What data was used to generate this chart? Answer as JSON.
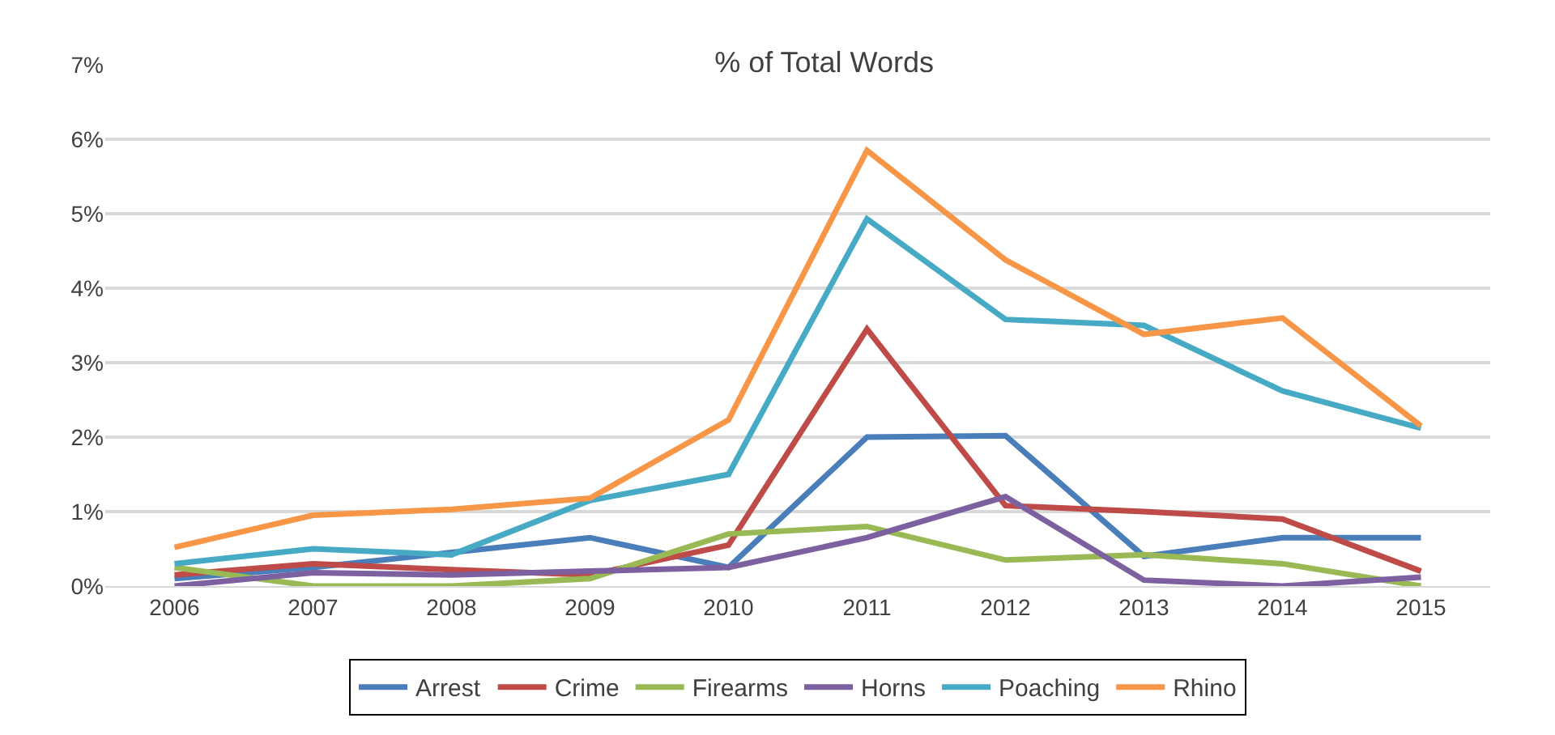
{
  "chart_data": {
    "type": "line",
    "title": "% of Total Words",
    "categories": [
      "2006",
      "2007",
      "2008",
      "2009",
      "2010",
      "2011",
      "2012",
      "2013",
      "2014",
      "2015"
    ],
    "series": [
      {
        "name": "Arrest",
        "color": "#4a7ebb",
        "values": [
          0.1,
          0.25,
          0.45,
          0.65,
          0.25,
          2.0,
          2.02,
          0.4,
          0.65,
          0.65
        ]
      },
      {
        "name": "Crime",
        "color": "#be4b48",
        "values": [
          0.15,
          0.3,
          0.22,
          0.15,
          0.55,
          3.45,
          1.08,
          1.0,
          0.9,
          0.2
        ]
      },
      {
        "name": "Firearms",
        "color": "#98b954",
        "values": [
          0.25,
          0.0,
          0.0,
          0.1,
          0.7,
          0.8,
          0.35,
          0.42,
          0.3,
          0.0
        ]
      },
      {
        "name": "Horns",
        "color": "#7d60a0",
        "values": [
          0.0,
          0.18,
          0.15,
          0.2,
          0.25,
          0.65,
          1.2,
          0.08,
          0.0,
          0.12
        ]
      },
      {
        "name": "Poaching",
        "color": "#46aac5",
        "values": [
          0.3,
          0.5,
          0.42,
          1.15,
          1.5,
          4.93,
          3.58,
          3.5,
          2.62,
          2.12
        ]
      },
      {
        "name": "Rhino",
        "color": "#f79646",
        "values": [
          0.52,
          0.95,
          1.03,
          1.18,
          2.23,
          5.85,
          4.38,
          3.38,
          3.6,
          2.15
        ]
      }
    ],
    "ylim": [
      0,
      7
    ],
    "yticks": [
      {
        "value": 0,
        "label": "0%"
      },
      {
        "value": 1,
        "label": "1%"
      },
      {
        "value": 2,
        "label": "2%"
      },
      {
        "value": 3,
        "label": "3%"
      },
      {
        "value": 4,
        "label": "4%"
      },
      {
        "value": 5,
        "label": "5%"
      },
      {
        "value": 6,
        "label": "6%"
      },
      {
        "value": 7,
        "label": "7%"
      }
    ],
    "grid": "y",
    "legend": "bottom",
    "marker": "none",
    "line_style": "solid"
  }
}
